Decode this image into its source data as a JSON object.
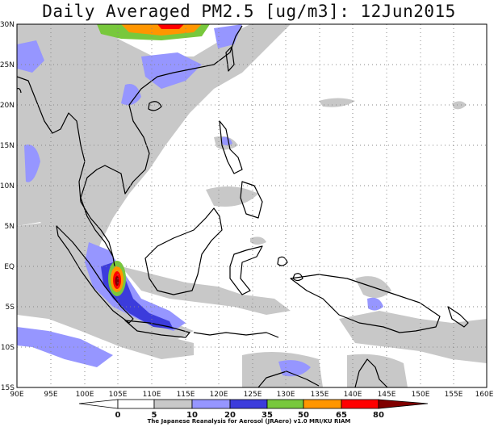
{
  "title": "Daily Averaged PM2.5 [ug/m3]: 12Jun2015",
  "credit": "The Japanese Reanalysis for Aerosol (JRAero) v1.0 MRI/KU RIAM",
  "map": {
    "lat_labels": [
      "30N",
      "25N",
      "20N",
      "15N",
      "10N",
      "5N",
      "EQ",
      "5S",
      "10S",
      "15S"
    ],
    "lon_labels": [
      "90E",
      "95E",
      "100E",
      "105E",
      "110E",
      "115E",
      "120E",
      "125E",
      "130E",
      "135E",
      "140E",
      "145E",
      "150E",
      "155E",
      "160E"
    ],
    "lat_range": [
      -15,
      30
    ],
    "lon_range": [
      90,
      160
    ],
    "grid": "dotted"
  },
  "colorbar": {
    "levels": [
      "0",
      "5",
      "10",
      "20",
      "35",
      "50",
      "65",
      "80"
    ],
    "colors": [
      "#ffffff",
      "#ffffff",
      "#c8c8c8",
      "#9696ff",
      "#3c3cdc",
      "#78c83c",
      "#ff9600",
      "#ff0000",
      "#800000"
    ]
  }
}
